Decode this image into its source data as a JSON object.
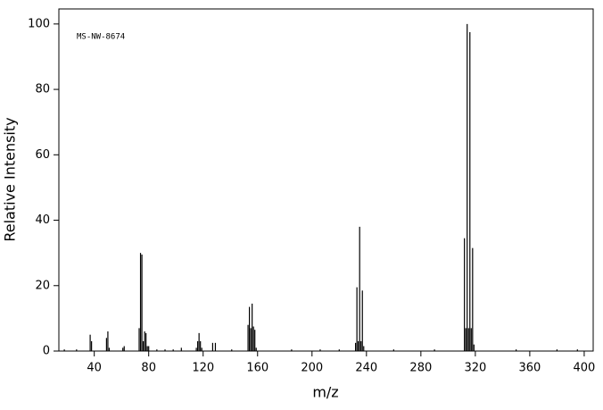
{
  "chart_data": {
    "type": "stem",
    "annotation": "MS-NW-8674",
    "xlabel": "m/z",
    "ylabel": "Relative Intensity",
    "x": [
      18,
      27,
      37,
      38,
      49,
      50,
      51,
      61,
      62,
      73,
      74,
      75,
      76,
      77,
      78,
      79,
      80,
      86,
      92,
      98,
      104,
      115,
      116,
      117,
      118,
      119,
      127,
      129,
      141,
      153,
      154,
      155,
      156,
      157,
      158,
      159,
      185,
      206,
      220,
      232,
      233,
      234,
      235,
      236,
      237,
      238,
      260,
      290,
      312,
      313,
      314,
      315,
      316,
      317,
      318,
      319,
      350,
      380,
      395
    ],
    "values": [
      0.5,
      0.5,
      5,
      3,
      4,
      6,
      1,
      1,
      1.5,
      7,
      30,
      29.5,
      3,
      6,
      5.5,
      1.5,
      1.5,
      0.5,
      0.5,
      0.5,
      1,
      1,
      3,
      5.5,
      3,
      1,
      2.5,
      2.5,
      0.5,
      8,
      13.5,
      7,
      14.5,
      7.5,
      6.5,
      1,
      0.5,
      0.5,
      0.5,
      2.5,
      19.5,
      3,
      38,
      3,
      18.5,
      1.5,
      0.5,
      0.5,
      34.5,
      7,
      100,
      7,
      97.5,
      7,
      31.5,
      2,
      0.5,
      0.5,
      0.5
    ],
    "color": "#000000",
    "xlim": [
      14,
      406.6
    ],
    "xticks": [
      40,
      80,
      120,
      160,
      200,
      240,
      280,
      320,
      360,
      400
    ],
    "ylim": [
      0,
      104.6
    ],
    "yticks": [
      0,
      20,
      40,
      60,
      80,
      100
    ]
  }
}
